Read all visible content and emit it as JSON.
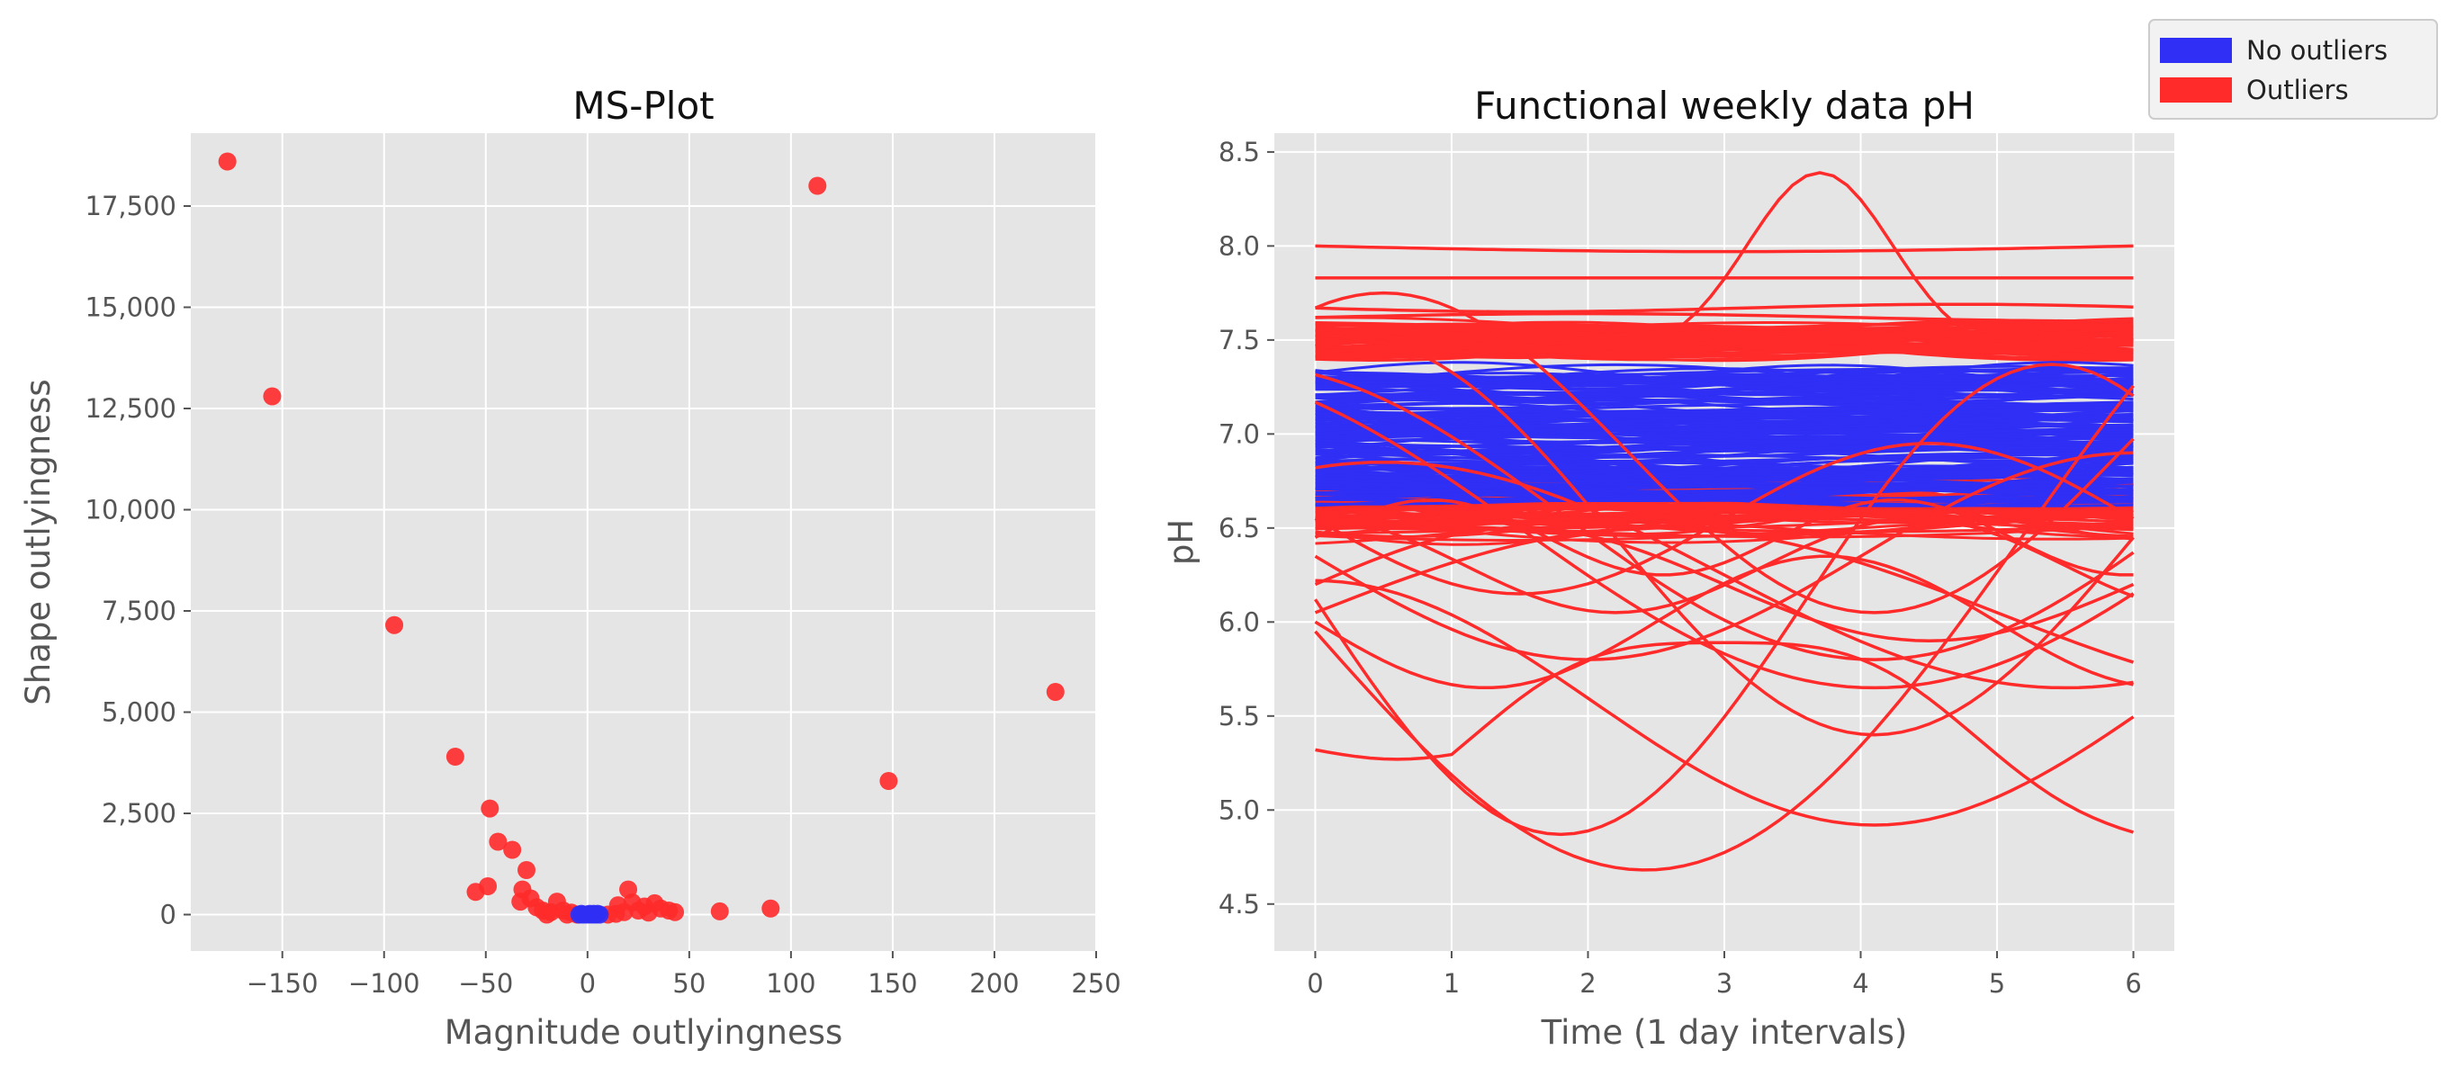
{
  "colors": {
    "no_outliers": "#2f2ff5",
    "outliers": "#ff2a2a",
    "panel_bg": "#e5e5e5",
    "grid": "#ffffff"
  },
  "legend": {
    "placement": "top-right",
    "items": [
      {
        "label": "No outliers",
        "color": "#2f2ff5"
      },
      {
        "label": "Outliers",
        "color": "#ff2a2a"
      }
    ]
  },
  "chart_data": [
    {
      "type": "scatter",
      "title": "MS-Plot",
      "xlabel": "Magnitude outlyingness",
      "ylabel": "Shape outlyingness",
      "xlim": [
        -195,
        250
      ],
      "ylim": [
        -900,
        19300
      ],
      "grid": true,
      "xticks": [
        -150,
        -100,
        -50,
        0,
        50,
        100,
        150,
        200,
        250
      ],
      "xtick_labels": [
        "−150",
        "−100",
        "−50",
        "0",
        "50",
        "100",
        "150",
        "200",
        "250"
      ],
      "yticks": [
        0,
        2500,
        5000,
        7500,
        10000,
        12500,
        15000,
        17500
      ],
      "ytick_labels": [
        "0",
        "2,500",
        "5,000",
        "7,500",
        "10,000",
        "12,500",
        "15,000",
        "17,500"
      ],
      "series": [
        {
          "name": "Outliers",
          "color": "#ff2a2a",
          "points": [
            [
              -177,
              18600
            ],
            [
              113,
              18000
            ],
            [
              -155,
              12800
            ],
            [
              -95,
              7150
            ],
            [
              230,
              5500
            ],
            [
              -65,
              3900
            ],
            [
              148,
              3300
            ],
            [
              -48,
              2620
            ],
            [
              -44,
              1800
            ],
            [
              -37,
              1600
            ],
            [
              -30,
              1100
            ],
            [
              -49,
              700
            ],
            [
              -55,
              560
            ],
            [
              -32,
              620
            ],
            [
              -33,
              320
            ],
            [
              -28,
              400
            ],
            [
              -25,
              180
            ],
            [
              -22,
              100
            ],
            [
              -18,
              60
            ],
            [
              -15,
              320
            ],
            [
              -12,
              100
            ],
            [
              -8,
              50
            ],
            [
              -20,
              0
            ],
            [
              -10,
              0
            ],
            [
              -5,
              0
            ],
            [
              10,
              0
            ],
            [
              14,
              20
            ],
            [
              18,
              60
            ],
            [
              20,
              620
            ],
            [
              22,
              300
            ],
            [
              25,
              100
            ],
            [
              28,
              200
            ],
            [
              30,
              50
            ],
            [
              33,
              280
            ],
            [
              36,
              150
            ],
            [
              40,
              100
            ],
            [
              43,
              60
            ],
            [
              65,
              80
            ],
            [
              90,
              150
            ],
            [
              15,
              230
            ]
          ]
        },
        {
          "name": "No outliers",
          "color": "#2f2ff5",
          "points": [
            [
              -4,
              0
            ],
            [
              -2,
              0
            ],
            [
              0,
              0
            ],
            [
              2,
              0
            ],
            [
              4,
              0
            ],
            [
              6,
              0
            ],
            [
              -3,
              20
            ],
            [
              1,
              20
            ],
            [
              3,
              20
            ],
            [
              5,
              20
            ]
          ]
        }
      ]
    },
    {
      "type": "line",
      "title": "Functional weekly data pH",
      "xlabel": "Time (1 day intervals)",
      "ylabel": "pH",
      "xlim": [
        -0.3,
        6.3
      ],
      "ylim": [
        4.25,
        8.6
      ],
      "grid": true,
      "xticks": [
        0,
        1,
        2,
        3,
        4,
        5,
        6
      ],
      "xtick_labels": [
        "0",
        "1",
        "2",
        "3",
        "4",
        "5",
        "6"
      ],
      "yticks": [
        4.5,
        5.0,
        5.5,
        6.0,
        6.5,
        7.0,
        7.5,
        8.0,
        8.5
      ],
      "ytick_labels": [
        "4.5",
        "5.0",
        "5.5",
        "6.0",
        "6.5",
        "7.0",
        "7.5",
        "8.0",
        "8.5"
      ],
      "series": [
        {
          "name": "No outliers",
          "color": "#2f2ff5",
          "band_min": 6.6,
          "band_max": 7.38
        },
        {
          "name": "Outliers",
          "color": "#ff2a2a",
          "band_upper": [
            7.42,
            7.58
          ],
          "band_lower": [
            6.5,
            6.7
          ]
        }
      ]
    }
  ]
}
